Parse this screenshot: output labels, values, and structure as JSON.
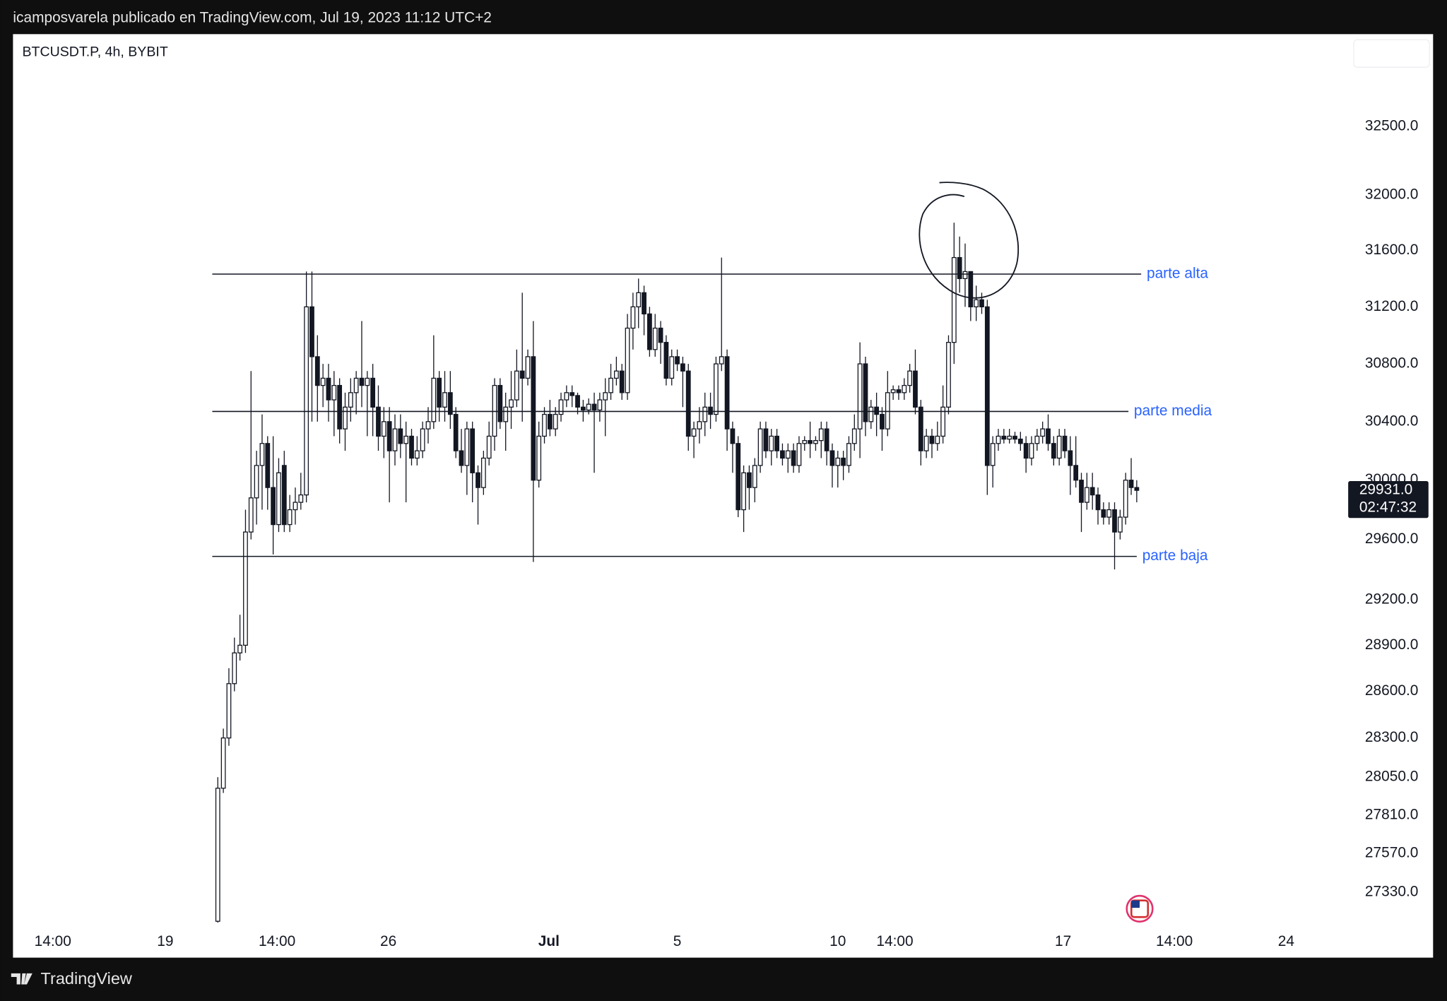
{
  "header": {
    "title": "icamposvarela publicado en TradingView.com, Jul 19, 2023 11:12 UTC+2"
  },
  "footer": {
    "brand": "TradingView"
  },
  "chart_data": {
    "type": "candlestick",
    "title": "BTCUSDT.P, 4h, BYBIT",
    "log_scale": true,
    "ylim": [
      33186,
      27142
    ],
    "yticks": [
      {
        "value": 32500,
        "label": "32500.0"
      },
      {
        "value": 32000,
        "label": "32000.0"
      },
      {
        "value": 31600,
        "label": "31600.0"
      },
      {
        "value": 31200,
        "label": "31200.0"
      },
      {
        "value": 30800,
        "label": "30800.0"
      },
      {
        "value": 30400,
        "label": "30400.0"
      },
      {
        "value": 30000,
        "label": "30000.0"
      },
      {
        "value": 29600,
        "label": "29600.0"
      },
      {
        "value": 29200,
        "label": "29200.0"
      },
      {
        "value": 28900,
        "label": "28900.0"
      },
      {
        "value": 28600,
        "label": "28600.0"
      },
      {
        "value": 28300,
        "label": "28300.0"
      },
      {
        "value": 28050,
        "label": "28050.0"
      },
      {
        "value": 27810,
        "label": "27810.0"
      },
      {
        "value": 27570,
        "label": "27570.0"
      },
      {
        "value": 27330,
        "label": "27330.0"
      }
    ],
    "xlim": [
      -27,
      213.2
    ],
    "xticks": [
      {
        "value": -19.8,
        "label": "14:00"
      },
      {
        "value": 0.5,
        "label": "19"
      },
      {
        "value": 20.7,
        "label": "14:00"
      },
      {
        "value": 40.8,
        "label": "26"
      },
      {
        "value": 69.8,
        "label": "Jul"
      },
      {
        "value": 93,
        "label": "5"
      },
      {
        "value": 122,
        "label": "10"
      },
      {
        "value": 132.3,
        "label": "14:00"
      },
      {
        "value": 162.7,
        "label": "17"
      },
      {
        "value": 182.8,
        "label": "14:00"
      },
      {
        "value": 203,
        "label": "24"
      }
    ],
    "up_color": "#ffffff",
    "down_color": "#131722",
    "edge_color": "#131722",
    "candles": [
      [
        10,
        27150,
        28050,
        27100,
        27980
      ],
      [
        11,
        27980,
        28360,
        27950,
        28300
      ],
      [
        12,
        28300,
        28750,
        28250,
        28650
      ],
      [
        13,
        28650,
        28950,
        28600,
        28850
      ],
      [
        14,
        28850,
        29100,
        28800,
        28900
      ],
      [
        15,
        28900,
        29800,
        28850,
        29650
      ],
      [
        16,
        29650,
        30750,
        29600,
        29880
      ],
      [
        17,
        29880,
        30200,
        29700,
        30100
      ],
      [
        18,
        30100,
        30450,
        29800,
        30250
      ],
      [
        19,
        30250,
        30300,
        29800,
        29950
      ],
      [
        20,
        29950,
        30300,
        29500,
        29700
      ],
      [
        21,
        29700,
        30150,
        29650,
        30050
      ],
      [
        22,
        30100,
        30200,
        29650,
        29700
      ],
      [
        23,
        29700,
        29900,
        29650,
        29800
      ],
      [
        24,
        29800,
        29950,
        29700,
        29850
      ],
      [
        25,
        29850,
        30050,
        29800,
        29900
      ],
      [
        26,
        29900,
        31450,
        29850,
        31200
      ],
      [
        27,
        31200,
        31450,
        30400,
        30850
      ],
      [
        28,
        30850,
        31000,
        30400,
        30650
      ],
      [
        29,
        30650,
        30800,
        30500,
        30700
      ],
      [
        30,
        30700,
        30800,
        30400,
        30550
      ],
      [
        31,
        30550,
        30750,
        30300,
        30650
      ],
      [
        32,
        30650,
        30700,
        30250,
        30350
      ],
      [
        33,
        30350,
        30600,
        30200,
        30500
      ],
      [
        34,
        30500,
        30700,
        30400,
        30600
      ],
      [
        35,
        30600,
        30750,
        30450,
        30700
      ],
      [
        36,
        30700,
        31100,
        30500,
        30650
      ],
      [
        37,
        30650,
        30750,
        30300,
        30700
      ],
      [
        38,
        30700,
        30800,
        30300,
        30500
      ],
      [
        39,
        30500,
        30650,
        30200,
        30300
      ],
      [
        40,
        30300,
        30500,
        30150,
        30400
      ],
      [
        41,
        30400,
        30500,
        29850,
        30200
      ],
      [
        42,
        30200,
        30450,
        30100,
        30350
      ],
      [
        43,
        30350,
        30450,
        30150,
        30250
      ],
      [
        44,
        30250,
        30400,
        29850,
        30300
      ],
      [
        45,
        30300,
        30350,
        30100,
        30150
      ],
      [
        46,
        30150,
        30300,
        30100,
        30200
      ],
      [
        47,
        30200,
        30400,
        30150,
        30350
      ],
      [
        48,
        30350,
        30500,
        30250,
        30400
      ],
      [
        49,
        30400,
        31000,
        30350,
        30700
      ],
      [
        50,
        30700,
        30750,
        30400,
        30500
      ],
      [
        51,
        30500,
        30750,
        30400,
        30600
      ],
      [
        52,
        30600,
        30750,
        30350,
        30450
      ],
      [
        53,
        30450,
        30500,
        30150,
        30200
      ],
      [
        54,
        30200,
        30350,
        30050,
        30100
      ],
      [
        55,
        30100,
        30400,
        29900,
        30350
      ],
      [
        56,
        30350,
        30400,
        29850,
        30050
      ],
      [
        57,
        30050,
        30100,
        29700,
        29950
      ],
      [
        58,
        29950,
        30200,
        29900,
        30150
      ],
      [
        59,
        30150,
        30400,
        30100,
        30300
      ],
      [
        60,
        30300,
        30700,
        30200,
        30650
      ],
      [
        61,
        30650,
        30700,
        30350,
        30400
      ],
      [
        62,
        30400,
        30600,
        30200,
        30500
      ],
      [
        63,
        30500,
        30750,
        30350,
        30550
      ],
      [
        64,
        30550,
        30900,
        30500,
        30750
      ],
      [
        65,
        30750,
        31300,
        30400,
        30700
      ],
      [
        66,
        30700,
        30900,
        30650,
        30850
      ],
      [
        67,
        30850,
        31100,
        29450,
        30000
      ],
      [
        68,
        30000,
        30400,
        29950,
        30300
      ],
      [
        69,
        30300,
        30500,
        30250,
        30450
      ],
      [
        70,
        30450,
        30550,
        30300,
        30350
      ],
      [
        71,
        30350,
        30500,
        30300,
        30450
      ],
      [
        72,
        30450,
        30600,
        30400,
        30550
      ],
      [
        73,
        30550,
        30650,
        30500,
        30600
      ],
      [
        74,
        30600,
        30650,
        30500,
        30580
      ],
      [
        75,
        30580,
        30600,
        30450,
        30500
      ],
      [
        76,
        30500,
        30550,
        30400,
        30480
      ],
      [
        77,
        30480,
        30560,
        30450,
        30520
      ],
      [
        78,
        30520,
        30600,
        30050,
        30480
      ],
      [
        79,
        30480,
        30600,
        30400,
        30550
      ],
      [
        80,
        30550,
        30700,
        30300,
        30600
      ],
      [
        81,
        30600,
        30800,
        30550,
        30700
      ],
      [
        82,
        30700,
        30850,
        30650,
        30750
      ],
      [
        83,
        30750,
        30800,
        30550,
        30600
      ],
      [
        84,
        30600,
        31150,
        30550,
        31050
      ],
      [
        85,
        31050,
        31300,
        30900,
        31200
      ],
      [
        86,
        31200,
        31400,
        31050,
        31300
      ],
      [
        87,
        31300,
        31350,
        31000,
        31150
      ],
      [
        88,
        31150,
        31200,
        30850,
        30900
      ],
      [
        89,
        30900,
        31150,
        30850,
        31050
      ],
      [
        90,
        31050,
        31100,
        30800,
        30950
      ],
      [
        91,
        30950,
        31000,
        30650,
        30700
      ],
      [
        92,
        30700,
        30900,
        30650,
        30850
      ],
      [
        93,
        30850,
        30900,
        30750,
        30800
      ],
      [
        94,
        30800,
        30850,
        30500,
        30750
      ],
      [
        95,
        30750,
        30800,
        30200,
        30300
      ],
      [
        96,
        30300,
        30400,
        30150,
        30350
      ],
      [
        97,
        30350,
        30500,
        30250,
        30400
      ],
      [
        98,
        30400,
        30600,
        30300,
        30500
      ],
      [
        99,
        30500,
        30600,
        30350,
        30450
      ],
      [
        100,
        30450,
        30850,
        30400,
        30800
      ],
      [
        101,
        30800,
        31550,
        30750,
        30850
      ],
      [
        102,
        30850,
        30900,
        30200,
        30350
      ],
      [
        103,
        30350,
        30400,
        30050,
        30250
      ],
      [
        104,
        30250,
        30300,
        29750,
        29800
      ],
      [
        105,
        29800,
        30100,
        29650,
        30050
      ],
      [
        106,
        30050,
        30100,
        29800,
        29950
      ],
      [
        107,
        29950,
        30150,
        29850,
        30100
      ],
      [
        108,
        30100,
        30400,
        30050,
        30350
      ],
      [
        109,
        30350,
        30400,
        30150,
        30200
      ],
      [
        110,
        30200,
        30350,
        30100,
        30300
      ],
      [
        111,
        30300,
        30350,
        30150,
        30200
      ],
      [
        112,
        30200,
        30250,
        30100,
        30150
      ],
      [
        113,
        30150,
        30250,
        30050,
        30200
      ],
      [
        114,
        30200,
        30250,
        30050,
        30100
      ],
      [
        115,
        30100,
        30300,
        30050,
        30250
      ],
      [
        116,
        30250,
        30300,
        30200,
        30270
      ],
      [
        117,
        30270,
        30400,
        30150,
        30250
      ],
      [
        118,
        30250,
        30300,
        30200,
        30270
      ],
      [
        119,
        30270,
        30400,
        30150,
        30350
      ],
      [
        120,
        30350,
        30400,
        30100,
        30200
      ],
      [
        121,
        30200,
        30250,
        29950,
        30100
      ],
      [
        122,
        30100,
        30200,
        29950,
        30150
      ],
      [
        123,
        30150,
        30200,
        30000,
        30100
      ],
      [
        124,
        30100,
        30300,
        30050,
        30250
      ],
      [
        125,
        30250,
        30450,
        30200,
        30350
      ],
      [
        126,
        30350,
        30950,
        30150,
        30800
      ],
      [
        127,
        30800,
        30850,
        30300,
        30400
      ],
      [
        128,
        30400,
        30550,
        30350,
        30500
      ],
      [
        129,
        30500,
        30600,
        30300,
        30450
      ],
      [
        130,
        30450,
        30500,
        30200,
        30350
      ],
      [
        131,
        30350,
        30750,
        30300,
        30600
      ],
      [
        132,
        30600,
        30650,
        30550,
        30620
      ],
      [
        133,
        30620,
        30650,
        30550,
        30600
      ],
      [
        134,
        30600,
        30700,
        30550,
        30650
      ],
      [
        135,
        30650,
        30800,
        30600,
        30750
      ],
      [
        136,
        30750,
        30900,
        30450,
        30500
      ],
      [
        137,
        30500,
        30550,
        30100,
        30200
      ],
      [
        138,
        30200,
        30350,
        30150,
        30300
      ],
      [
        139,
        30300,
        30350,
        30150,
        30250
      ],
      [
        140,
        30250,
        30400,
        30200,
        30300
      ],
      [
        141,
        30300,
        30650,
        30250,
        30500
      ],
      [
        142,
        30500,
        31000,
        30450,
        30950
      ],
      [
        143,
        30950,
        31800,
        30800,
        31550
      ],
      [
        144,
        31550,
        31700,
        31300,
        31400
      ],
      [
        145,
        31400,
        31650,
        31200,
        31450
      ],
      [
        146,
        31450,
        31450,
        31100,
        31200
      ],
      [
        147,
        31200,
        31350,
        31100,
        31250
      ],
      [
        148,
        31250,
        31300,
        31150,
        31200
      ],
      [
        149,
        31200,
        31250,
        29900,
        30100
      ],
      [
        150,
        30100,
        30300,
        29950,
        30250
      ],
      [
        151,
        30250,
        30350,
        30200,
        30300
      ],
      [
        152,
        30300,
        30350,
        30250,
        30280
      ],
      [
        153,
        30280,
        30350,
        30250,
        30300
      ],
      [
        154,
        30300,
        30330,
        30250,
        30280
      ],
      [
        155,
        30280,
        30330,
        30200,
        30250
      ],
      [
        156,
        30250,
        30300,
        30050,
        30150
      ],
      [
        157,
        30150,
        30300,
        30100,
        30250
      ],
      [
        158,
        30250,
        30350,
        30200,
        30300
      ],
      [
        159,
        30300,
        30400,
        30250,
        30350
      ],
      [
        160,
        30350,
        30450,
        30200,
        30250
      ],
      [
        161,
        30250,
        30300,
        30100,
        30150
      ],
      [
        162,
        30150,
        30350,
        30100,
        30300
      ],
      [
        163,
        30300,
        30350,
        30150,
        30200
      ],
      [
        164,
        30200,
        30300,
        29900,
        30100
      ],
      [
        165,
        30100,
        30300,
        29950,
        30000
      ],
      [
        166,
        30000,
        30050,
        29650,
        29850
      ],
      [
        167,
        29850,
        30050,
        29800,
        29950
      ],
      [
        168,
        29950,
        30050,
        29800,
        29900
      ],
      [
        169,
        29900,
        29950,
        29700,
        29800
      ],
      [
        170,
        29800,
        29850,
        29700,
        29750
      ],
      [
        171,
        29750,
        29850,
        29700,
        29800
      ],
      [
        172,
        29800,
        29850,
        29400,
        29650
      ],
      [
        173,
        29650,
        29800,
        29600,
        29750
      ],
      [
        174,
        29750,
        30050,
        29700,
        30000
      ],
      [
        175,
        30000,
        30150,
        29900,
        29950
      ],
      [
        176,
        29950,
        30000,
        29850,
        29931
      ]
    ],
    "levels": [
      {
        "label": "parte alta",
        "value": 31432,
        "start": 9,
        "end": 176.8
      },
      {
        "label": "parte media",
        "value": 30470,
        "start": 9,
        "end": 174.5
      },
      {
        "label": "parte baja",
        "value": 29487,
        "start": 9,
        "end": 176
      }
    ],
    "level_color": "#2962ff",
    "last_price": {
      "value": 29931,
      "label": "29931.0"
    },
    "countdown": "02:47:32"
  }
}
